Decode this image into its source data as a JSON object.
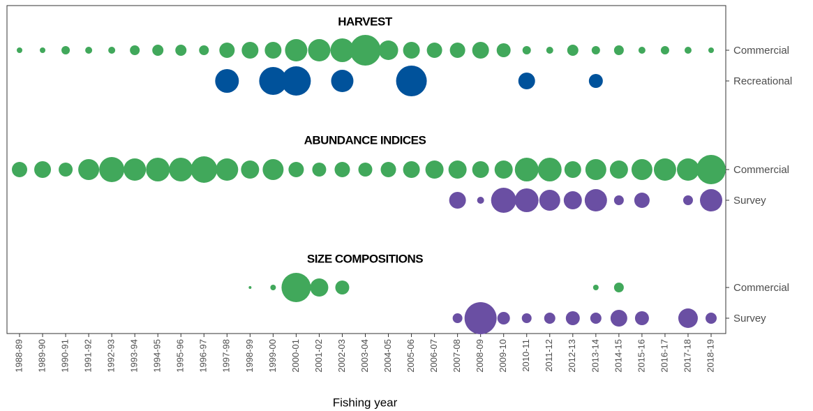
{
  "chart_data": {
    "type": "bubble",
    "x_label": "Fishing year",
    "categories": [
      "1988-89",
      "1989-90",
      "1990-91",
      "1991-92",
      "1992-93",
      "1993-94",
      "1994-95",
      "1995-96",
      "1996-97",
      "1997-98",
      "1998-99",
      "1999-00",
      "2000-01",
      "2001-02",
      "2002-03",
      "2003-04",
      "2004-05",
      "2005-06",
      "2006-07",
      "2007-08",
      "2008-09",
      "2009-10",
      "2010-11",
      "2011-12",
      "2012-13",
      "2013-14",
      "2014-15",
      "2015-16",
      "2016-17",
      "2017-18",
      "2018-19"
    ],
    "panels": [
      {
        "title": "HARVEST",
        "series": [
          {
            "name": "Commercial",
            "color": "#41a85b",
            "values": [
              4,
              4,
              6,
              5,
              5,
              7,
              8,
              8,
              7,
              11,
              12,
              12,
              16,
              16,
              17,
              22,
              14,
              12,
              11,
              11,
              12,
              10,
              6,
              5,
              8,
              6,
              7,
              5,
              6,
              5,
              4
            ]
          },
          {
            "name": "Recreational",
            "color": "#00529b",
            "values": [
              null,
              null,
              null,
              null,
              null,
              null,
              null,
              null,
              null,
              17,
              null,
              20,
              21,
              null,
              16,
              null,
              null,
              22,
              null,
              null,
              null,
              null,
              12,
              null,
              null,
              10,
              null,
              null,
              null,
              null,
              null
            ]
          }
        ]
      },
      {
        "title": "ABUNDANCE INDICES",
        "series": [
          {
            "name": "Commercial",
            "color": "#41a85b",
            "values": [
              11,
              12,
              10,
              15,
              18,
              16,
              17,
              17,
              19,
              16,
              13,
              15,
              11,
              10,
              11,
              10,
              11,
              12,
              13,
              13,
              12,
              13,
              17,
              17,
              12,
              15,
              13,
              15,
              16,
              16,
              21
            ]
          },
          {
            "name": "Survey",
            "color": "#6a4fa3",
            "values": [
              null,
              null,
              null,
              null,
              null,
              null,
              null,
              null,
              null,
              null,
              null,
              null,
              null,
              null,
              null,
              null,
              null,
              null,
              null,
              12,
              5,
              18,
              17,
              15,
              13,
              16,
              7,
              11,
              null,
              7,
              16
            ]
          }
        ]
      },
      {
        "title": "SIZE COMPOSITIONS",
        "series": [
          {
            "name": "Commercial",
            "color": "#41a85b",
            "values": [
              null,
              null,
              null,
              null,
              null,
              null,
              null,
              null,
              null,
              null,
              2,
              4,
              21,
              13,
              10,
              null,
              null,
              null,
              null,
              null,
              null,
              null,
              null,
              null,
              null,
              4,
              7,
              null,
              null,
              null,
              null
            ]
          },
          {
            "name": "Survey",
            "color": "#6a4fa3",
            "values": [
              null,
              null,
              null,
              null,
              null,
              null,
              null,
              null,
              null,
              null,
              null,
              null,
              null,
              null,
              null,
              null,
              null,
              null,
              null,
              7,
              23,
              9,
              7,
              8,
              10,
              8,
              12,
              10,
              null,
              14,
              8
            ]
          }
        ]
      }
    ]
  }
}
